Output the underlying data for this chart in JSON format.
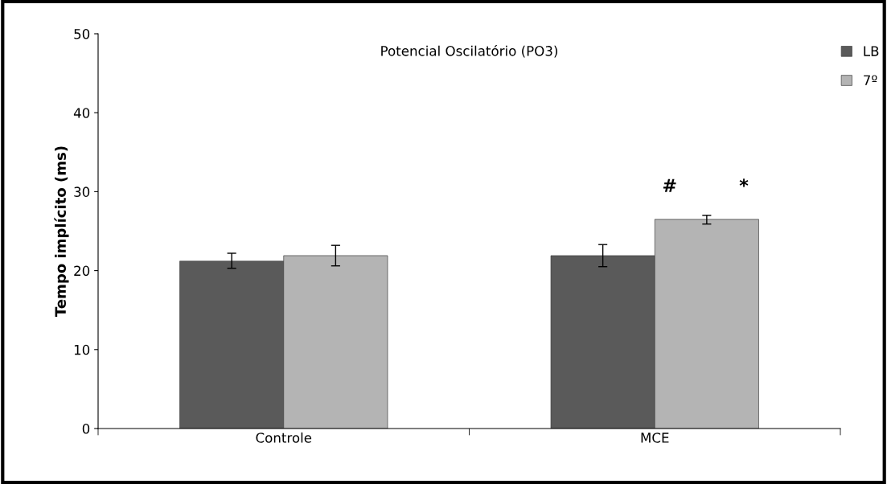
{
  "chart_data": {
    "type": "bar",
    "title": "Potencial Oscilatório (PO3)",
    "ylabel": "Tempo implícito (ms)",
    "categories": [
      "Controle",
      "MCE"
    ],
    "series": [
      {
        "name": "LB",
        "color": "#5a5a5a",
        "values": [
          21.2,
          21.9
        ],
        "errors": [
          [
            20.3,
            22.2
          ],
          [
            20.5,
            23.3
          ]
        ]
      },
      {
        "name": "7º",
        "color": "#b4b4b4",
        "values": [
          21.9,
          26.5
        ],
        "errors": [
          [
            20.6,
            23.2
          ],
          [
            25.9,
            27.0
          ]
        ]
      }
    ],
    "ylim": [
      0,
      50
    ],
    "yticks": [
      0,
      10,
      20,
      30,
      40,
      50
    ],
    "grid": false,
    "legend": "top right",
    "annotations": [
      "#",
      "*"
    ]
  }
}
